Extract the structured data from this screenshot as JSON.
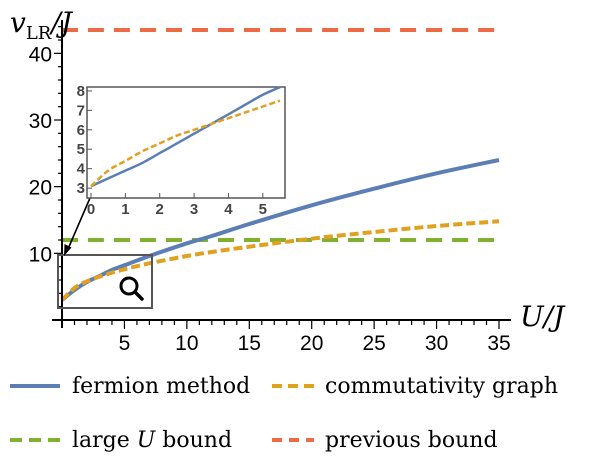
{
  "colors": {
    "fermion": "#5b7fb5",
    "commutativity": "#e0a020",
    "large_u": "#80b030",
    "previous": "#ec6a44",
    "axis": "#000000",
    "inset_frame": "#555555"
  },
  "icons": {
    "zoom": "magnifier-icon"
  },
  "chart_data": [
    {
      "type": "line",
      "ylabel_main": "v",
      "ylabel_sub": "LR",
      "ylabel_tail": "/J",
      "xlabel": "U/J",
      "xlim": [
        0,
        35
      ],
      "ylim": [
        0,
        45
      ],
      "xticks": [
        "5",
        "10",
        "15",
        "20",
        "25",
        "30",
        "35"
      ],
      "yticks": [
        "10",
        "20",
        "30",
        "40"
      ],
      "series": [
        {
          "name": "fermion method",
          "style": "solid",
          "x": [
            0,
            1,
            2,
            3,
            4,
            5,
            7,
            10,
            12,
            15,
            20,
            25,
            30,
            35
          ],
          "y": [
            3.0,
            4.5,
            5.7,
            6.6,
            7.5,
            8.2,
            9.6,
            11.5,
            12.6,
            14.4,
            17.2,
            19.7,
            22.0,
            24.0
          ]
        },
        {
          "name": "commutativity graph",
          "style": "dashed",
          "x": [
            0,
            1,
            2,
            3,
            4,
            5,
            7,
            10,
            12,
            15,
            20,
            25,
            30,
            35
          ],
          "y": [
            3.0,
            4.8,
            5.8,
            6.5,
            7.1,
            7.6,
            8.5,
            9.6,
            10.2,
            11.0,
            12.2,
            13.2,
            14.1,
            14.8
          ]
        },
        {
          "name": "large U bound",
          "style": "dashed",
          "x": [
            0,
            35
          ],
          "y": [
            12,
            12
          ]
        },
        {
          "name": "previous bound",
          "style": "dashed",
          "x": [
            0,
            35
          ],
          "y": [
            43.5,
            43.5
          ]
        }
      ]
    },
    {
      "type": "line",
      "inset": true,
      "xlim": [
        0,
        5.5
      ],
      "ylim": [
        2.8,
        8.1
      ],
      "xticks": [
        "0",
        "1",
        "2",
        "3",
        "4",
        "5"
      ],
      "yticks": [
        "3",
        "4",
        "5",
        "6",
        "7",
        "8"
      ],
      "series": [
        {
          "name": "fermion method",
          "style": "solid",
          "x": [
            0,
            0.5,
            1,
            1.5,
            2,
            2.5,
            3,
            3.5,
            4,
            4.5,
            5,
            5.5
          ],
          "y": [
            3.1,
            3.5,
            3.9,
            4.3,
            4.8,
            5.3,
            5.8,
            6.3,
            6.8,
            7.3,
            7.8,
            8.2
          ]
        },
        {
          "name": "commutativity graph",
          "style": "dashed",
          "x": [
            0,
            0.5,
            1,
            1.5,
            2,
            2.5,
            3,
            3.5,
            4,
            4.5,
            5,
            5.5
          ],
          "y": [
            3.1,
            3.9,
            4.4,
            4.9,
            5.3,
            5.7,
            6.0,
            6.3,
            6.6,
            6.9,
            7.2,
            7.5
          ]
        }
      ]
    }
  ],
  "legend": [
    {
      "key": "fermion",
      "label": "fermion method",
      "style": "solid"
    },
    {
      "key": "commutativity",
      "label": "commutativity graph",
      "style": "dashed"
    },
    {
      "key": "large_u",
      "label_pre": "large ",
      "label_var": "U",
      "label_post": " bound",
      "style": "dashed"
    },
    {
      "key": "previous",
      "label": "previous bound",
      "style": "dashed"
    }
  ]
}
